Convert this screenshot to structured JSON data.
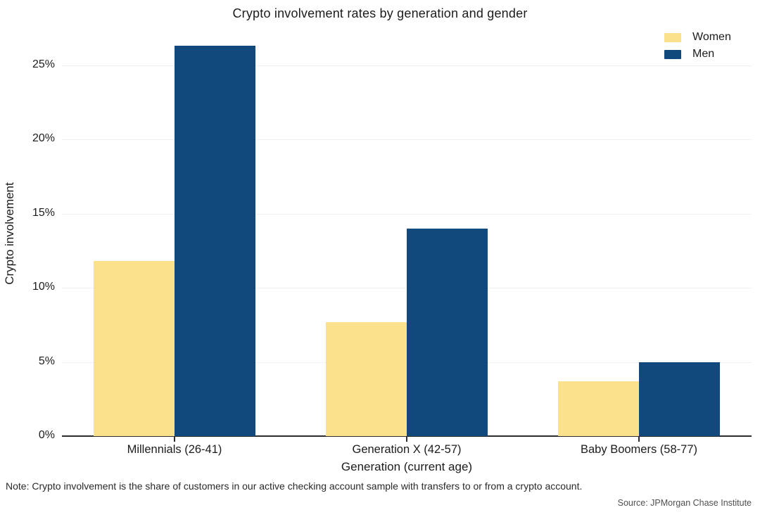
{
  "chart_data": {
    "type": "bar",
    "title": "Crypto involvement rates by generation and gender",
    "categories": [
      "Millennials (26-41)",
      "Generation X (42-57)",
      "Baby Boomers (58-77)"
    ],
    "series": [
      {
        "name": "Women",
        "color": "#fbe18c",
        "values": [
          11.8,
          7.7,
          3.7
        ]
      },
      {
        "name": "Men",
        "color": "#11497d",
        "values": [
          26.3,
          14.0,
          5.0
        ]
      }
    ],
    "xlabel": "Generation (current age)",
    "ylabel": "Crypto involvement",
    "ylim": [
      0,
      27.5
    ],
    "yticks": [
      0,
      5,
      10,
      15,
      20,
      25
    ],
    "ytick_labels": [
      "0%",
      "5%",
      "10%",
      "15%",
      "20%",
      "25%"
    ],
    "grid": true,
    "legend_position": "top-right"
  },
  "note": "Note: Crypto involvement is the share of customers in our active checking account sample with transfers to or from a crypto account.",
  "source": "Source: JPMorgan Chase Institute"
}
